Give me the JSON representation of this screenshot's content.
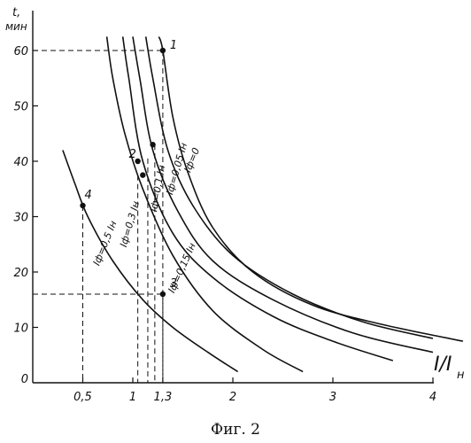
{
  "chart_data": {
    "type": "line",
    "caption": "Фиг. 2",
    "ylabel_top": "t,",
    "ylabel_unit": "мин",
    "xlabel_main": "I/I",
    "xlabel_sub": "н",
    "xlim": [
      0,
      4.5
    ],
    "ylim": [
      0,
      66
    ],
    "xticks": [
      {
        "value": 0.5,
        "label": "0,5"
      },
      {
        "value": 1,
        "label": "1"
      },
      {
        "value": 1.3,
        "label": "1,3"
      },
      {
        "value": 2,
        "label": "2"
      },
      {
        "value": 3,
        "label": "3"
      },
      {
        "value": 4,
        "label": "4"
      }
    ],
    "yticks": [
      {
        "value": 0,
        "label": "0"
      },
      {
        "value": 10,
        "label": "10"
      },
      {
        "value": 20,
        "label": "20"
      },
      {
        "value": 30,
        "label": "30"
      },
      {
        "value": 40,
        "label": "40"
      },
      {
        "value": 50,
        "label": "50"
      },
      {
        "value": 60,
        "label": "60"
      }
    ],
    "series": [
      {
        "name": "Iф=0",
        "points": [
          [
            1.26,
            62.5
          ],
          [
            1.3,
            60
          ],
          [
            1.4,
            48
          ],
          [
            1.55,
            38
          ],
          [
            1.8,
            28
          ],
          [
            2.2,
            20
          ],
          [
            2.8,
            14
          ],
          [
            3.5,
            10.5
          ],
          [
            4.3,
            7.5
          ]
        ]
      },
      {
        "name": "Iф=0,05 Iн",
        "points": [
          [
            1.13,
            62.5
          ],
          [
            1.2,
            55
          ],
          [
            1.35,
            42
          ],
          [
            1.6,
            32
          ],
          [
            2.0,
            23
          ],
          [
            2.6,
            16
          ],
          [
            3.3,
            11
          ],
          [
            4.0,
            8
          ]
        ]
      },
      {
        "name": "Iф=0,1 Iн",
        "points": [
          [
            1.0,
            62.5
          ],
          [
            1.07,
            55
          ],
          [
            1.2,
            42
          ],
          [
            1.45,
            31
          ],
          [
            1.8,
            22
          ],
          [
            2.4,
            15
          ],
          [
            3.2,
            9
          ],
          [
            4.0,
            5.5
          ]
        ]
      },
      {
        "name": "Iф=0,15 Iн",
        "points": [
          [
            0.9,
            62.5
          ],
          [
            0.96,
            55
          ],
          [
            1.1,
            40
          ],
          [
            1.4,
            27
          ],
          [
            1.8,
            19
          ],
          [
            2.4,
            12
          ],
          [
            3.0,
            7.5
          ],
          [
            3.6,
            4
          ]
        ]
      },
      {
        "name": "Iф=0,3 Iн",
        "points": [
          [
            0.74,
            62.5
          ],
          [
            0.8,
            55
          ],
          [
            0.92,
            45
          ],
          [
            1.1,
            35
          ],
          [
            1.4,
            23
          ],
          [
            1.8,
            13
          ],
          [
            2.3,
            6
          ],
          [
            2.7,
            2
          ]
        ]
      },
      {
        "name": "Iф=0,5 Iн",
        "points": [
          [
            0.3,
            42
          ],
          [
            0.42,
            36
          ],
          [
            0.55,
            30
          ],
          [
            0.8,
            22
          ],
          [
            1.1,
            15
          ],
          [
            1.4,
            10
          ],
          [
            1.75,
            5.5
          ],
          [
            2.05,
            2
          ]
        ]
      }
    ],
    "points": [
      {
        "label": "1",
        "x": 1.3,
        "y": 60
      },
      {
        "label": "2",
        "x": 1.05,
        "y": 40
      },
      {
        "label": "3",
        "x": 1.3,
        "y": 16
      },
      {
        "label": "4",
        "x": 0.5,
        "y": 32
      }
    ],
    "unlabeled_points": [
      {
        "x": 1.1,
        "y": 37.5
      },
      {
        "x": 1.2,
        "y": 43
      }
    ],
    "guides": [
      {
        "x": 1.3,
        "y": 60
      },
      {
        "x": 1.3,
        "y": 16
      },
      {
        "x": 0.5,
        "y": 32
      },
      {
        "x": 1.05,
        "y": 37.5
      },
      {
        "x": 1.15,
        "y": 40.5
      },
      {
        "x": 1.22,
        "y": 43
      }
    ]
  }
}
